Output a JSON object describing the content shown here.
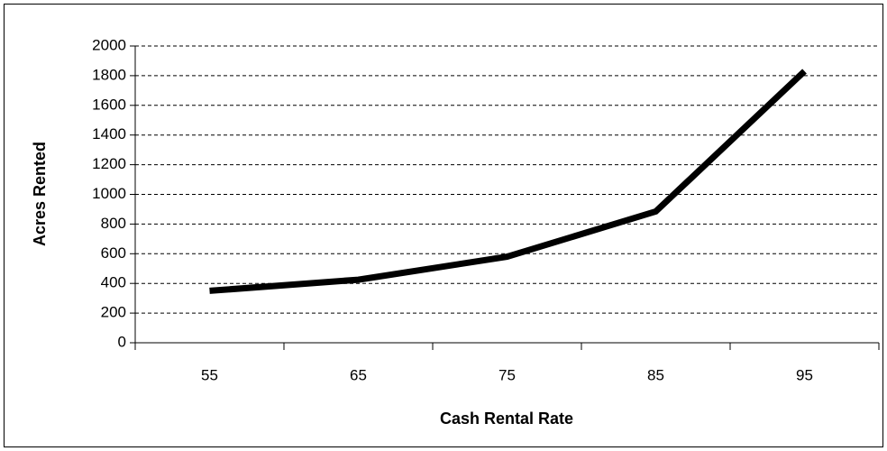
{
  "chart_data": {
    "type": "line",
    "x_label": "Cash Rental Rate",
    "y_label": "Acres Rented",
    "categories": [
      "55",
      "65",
      "75",
      "85",
      "95"
    ],
    "values": [
      350,
      425,
      580,
      885,
      1830
    ],
    "color": "#000000",
    "ylim": [
      0,
      2000
    ],
    "yticks": [
      0,
      200,
      400,
      600,
      800,
      1000,
      1200,
      1400,
      1600,
      1800,
      2000
    ],
    "grid": true
  }
}
